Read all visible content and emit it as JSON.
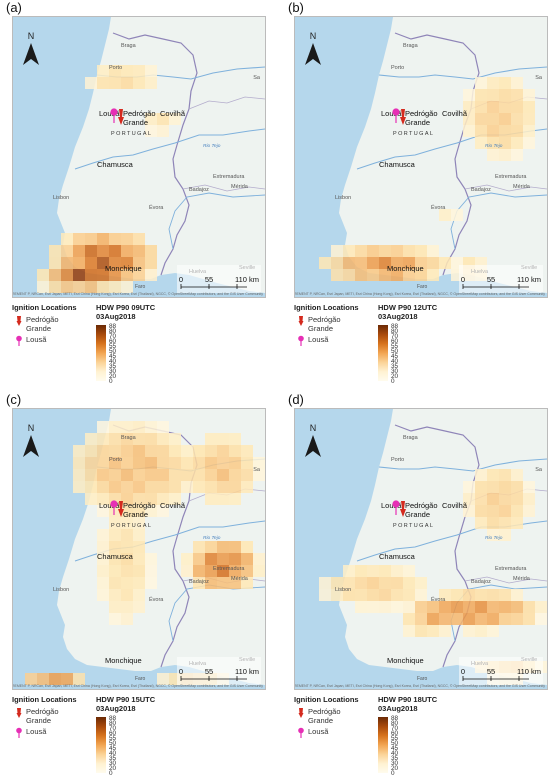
{
  "legend": {
    "ignition_title": "Ignition Locations",
    "pedrogao_label": "Pedrógão Grande",
    "lousa_label": "Lousã",
    "date_label": "03Aug2018",
    "ticks": [
      "88",
      "80",
      "70",
      "60",
      "55",
      "50",
      "45",
      "40",
      "35",
      "30",
      "20",
      "0"
    ]
  },
  "colors": {
    "pedrogao_pin": "#d42a1e",
    "lousa_pin": "#e62fb5",
    "hdw_low": "#fffbee",
    "hdw_high": "#6b2a05",
    "sea": "#b5d7ec",
    "land": "#eef3f0"
  },
  "map_labels": {
    "north": "N",
    "braga": "Braga",
    "porto": "Porto",
    "lousa": "Lousã",
    "pedrogao": "Pedrógão",
    "grande": "Grande",
    "covilha": "Covilhã",
    "portugal": "PORTUGAL",
    "tejo": "Rio Tejo",
    "chamusca": "Chamusca",
    "extremadura": "Extremadura",
    "badajoz": "Badajoz",
    "merida": "Mérida",
    "lisbon": "Lisbon",
    "evora": "Évora",
    "monchique": "Monchique",
    "huelva": "Huelva",
    "seville": "Seville",
    "faro": "Faro",
    "sa": "Sa",
    "bra": "Bra",
    "scale_0": "0",
    "scale_55": "55",
    "scale_110": "110 km",
    "credits": "rces: Esri, HERE, Garmin, USGS, Intermap, INCREMENT P, NRCan, Esri Japan, METI, Esri China (Hong Kong), Esri Korea, Esri (Thailand), NGCC, © OpenStreetMap contributors, and the GIS User Community"
  },
  "panels": [
    {
      "label": "(a)",
      "hdw_title": "HDW P90 09UTC"
    },
    {
      "label": "(b)",
      "hdw_title": "HDW P90 12UTC"
    },
    {
      "label": "(c)",
      "hdw_title": "HDW P90 15UTC"
    },
    {
      "label": "(d)",
      "hdw_title": "HDW P90 18UTC"
    }
  ]
}
